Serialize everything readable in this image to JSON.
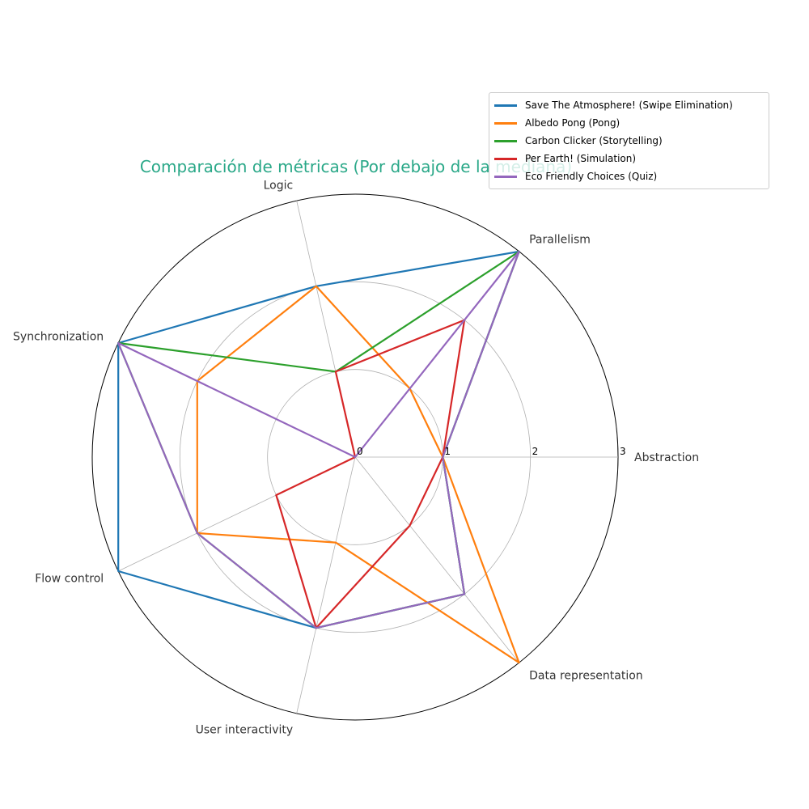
{
  "chart_data": {
    "type": "radar",
    "title": "Comparación de métricas (Por debajo de la mediana)",
    "axes": [
      "Abstraction",
      "Parallelism",
      "Logic",
      "Synchronization",
      "Flow control",
      "User interactivity",
      "Data representation"
    ],
    "rlim": [
      0,
      3
    ],
    "rticks": [
      "0",
      "1",
      "2",
      "3"
    ],
    "grid": true,
    "legend_position": "top-right",
    "series": [
      {
        "name": "Save The Atmosphere! (Swipe Elimination)",
        "color": "#1f77b4",
        "values": [
          1,
          3,
          2,
          3,
          3,
          2,
          2
        ]
      },
      {
        "name": "Albedo Pong (Pong)",
        "color": "#ff7f0e",
        "values": [
          1,
          1,
          2,
          2,
          2,
          1,
          3
        ]
      },
      {
        "name": "Carbon Clicker (Storytelling)",
        "color": "#2ca02c",
        "values": [
          1,
          3,
          1,
          3,
          2,
          2,
          2
        ]
      },
      {
        "name": "Per Earth! (Simulation)",
        "color": "#d62728",
        "values": [
          1,
          2,
          1,
          0,
          1,
          2,
          1
        ]
      },
      {
        "name": "Eco Friendly Choices (Quiz)",
        "color": "#9467bd",
        "values": [
          1,
          3,
          0,
          3,
          2,
          2,
          2
        ]
      }
    ]
  }
}
